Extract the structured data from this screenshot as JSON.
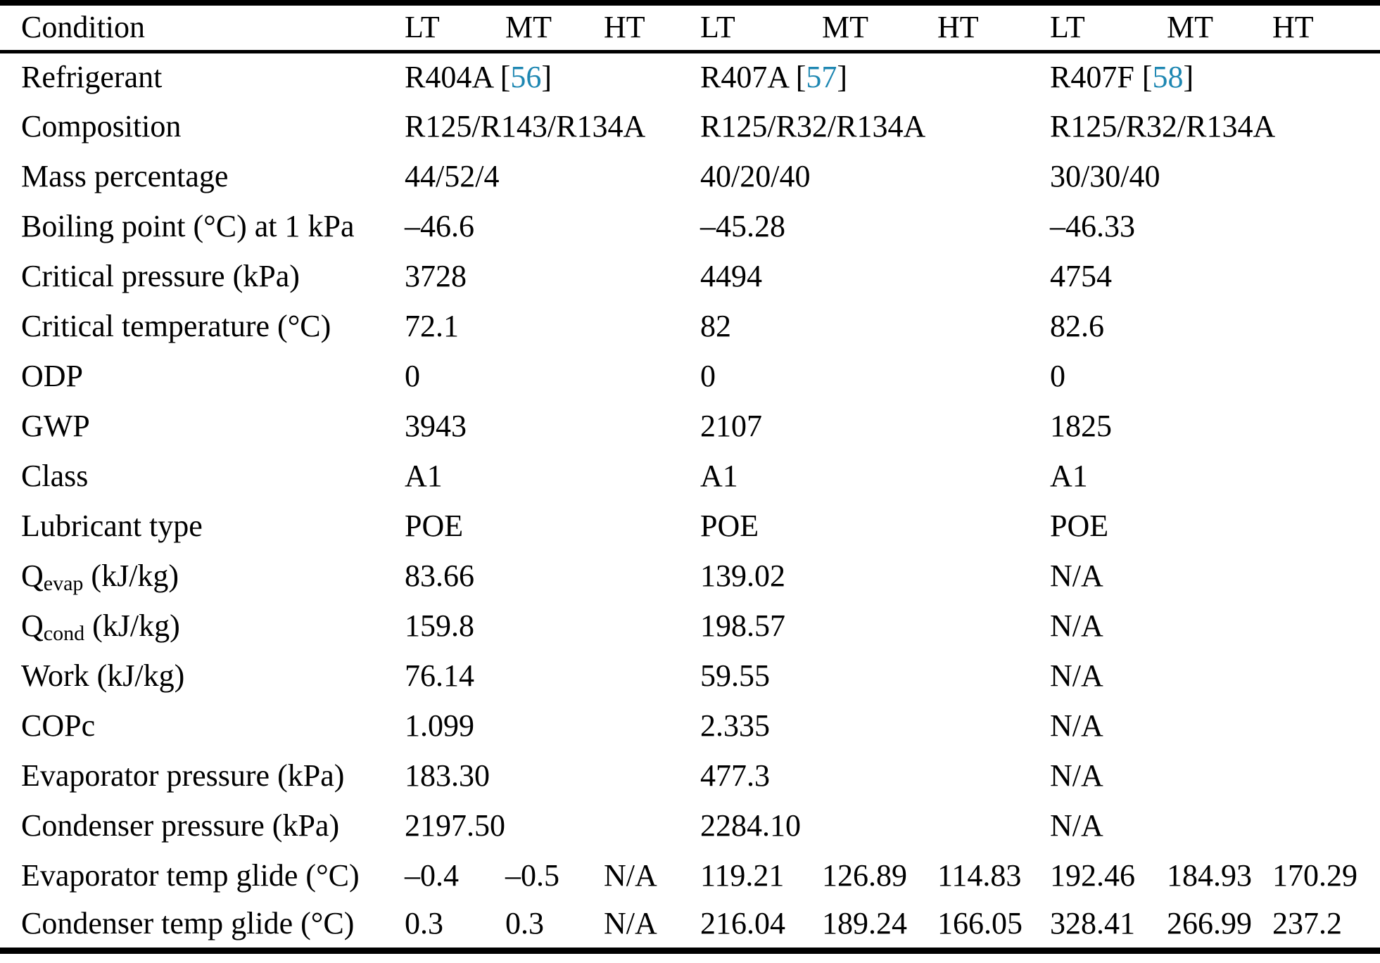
{
  "citation": {
    "color": "#1e87b2",
    "bracket_open": " [",
    "bracket_close": "]"
  },
  "table": {
    "header": {
      "condition": "Condition",
      "cols": [
        "LT",
        "MT",
        "HT",
        "LT",
        "MT",
        "HT",
        "LT",
        "MT",
        "HT"
      ]
    },
    "rows": [
      {
        "type": "refs",
        "label": "Refrigerant",
        "refs": [
          {
            "name": "R404A",
            "ref": "56"
          },
          {
            "name": "R407A",
            "ref": "57"
          },
          {
            "name": "R407F",
            "ref": "58"
          }
        ]
      },
      {
        "type": "span",
        "label": "Composition",
        "values": [
          "R125/R143/R134A",
          "R125/R32/R134A",
          "R125/R32/R134A"
        ]
      },
      {
        "type": "span",
        "label": "Mass percentage",
        "values": [
          "44/52/4",
          "40/20/40",
          "30/30/40"
        ]
      },
      {
        "type": "span",
        "label": "Boiling point (°C) at 1 kPa",
        "values": [
          "–46.6",
          "–45.28",
          "–46.33"
        ]
      },
      {
        "type": "span",
        "label": "Critical pressure (kPa)",
        "values": [
          "3728",
          "4494",
          "4754"
        ]
      },
      {
        "type": "span",
        "label": "Critical temperature (°C)",
        "values": [
          "72.1",
          "82",
          "82.6"
        ]
      },
      {
        "type": "span",
        "label": "ODP",
        "values": [
          "0",
          "0",
          "0"
        ]
      },
      {
        "type": "span",
        "label": "GWP",
        "values": [
          "3943",
          "2107",
          "1825"
        ]
      },
      {
        "type": "span",
        "label": "Class",
        "values": [
          "A1",
          "A1",
          "A1"
        ]
      },
      {
        "type": "span",
        "label": "Lubricant type",
        "values": [
          "POE",
          "POE",
          "POE"
        ]
      },
      {
        "type": "span",
        "label_main": "Q",
        "label_sub": "evap",
        "label_rest": " (kJ/kg)",
        "values": [
          "83.66",
          "139.02",
          "N/A"
        ]
      },
      {
        "type": "span",
        "label_main": "Q",
        "label_sub": "cond",
        "label_rest": " (kJ/kg)",
        "values": [
          "159.8",
          "198.57",
          "N/A"
        ]
      },
      {
        "type": "span",
        "label": "Work (kJ/kg)",
        "values": [
          "76.14",
          "59.55",
          "N/A"
        ]
      },
      {
        "type": "span",
        "label": "COPc",
        "values": [
          "1.099",
          "2.335",
          "N/A"
        ]
      },
      {
        "type": "span",
        "label": "Evaporator pressure (kPa)",
        "values": [
          "183.30",
          "477.3",
          "N/A"
        ]
      },
      {
        "type": "span",
        "label": "Condenser pressure (kPa)",
        "values": [
          "2197.50",
          "2284.10",
          "N/A"
        ]
      },
      {
        "type": "cells",
        "label": "Evaporator temp glide (°C)",
        "values": [
          "–0.4",
          "–0.5",
          "N/A",
          "119.21",
          "126.89",
          "114.83",
          "192.46",
          "184.93",
          "170.29"
        ]
      },
      {
        "type": "cells",
        "label": "Condenser temp glide (°C)",
        "values": [
          "0.3",
          "0.3",
          "N/A",
          "216.04",
          "189.24",
          "166.05",
          "328.41",
          "266.99",
          "237.2"
        ]
      }
    ]
  }
}
